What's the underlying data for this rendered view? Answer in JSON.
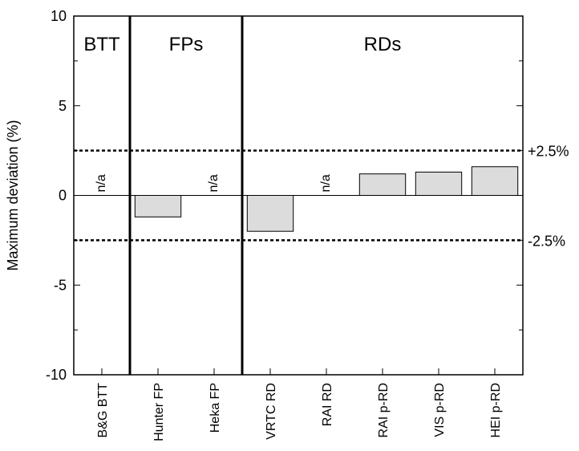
{
  "chart_data": {
    "type": "bar",
    "ylabel": "Maximum deviation (%)",
    "xlabel": "",
    "ylim": [
      -10,
      10
    ],
    "yticks": [
      -10,
      -5,
      0,
      5,
      10
    ],
    "categories": [
      "B&G BTT",
      "Hunter FP",
      "Heka FP",
      "VRTC RD",
      "RAI RD",
      "RAI p-RD",
      "VIS p-RD",
      "HEI p-RD"
    ],
    "values": [
      null,
      -1.2,
      null,
      -2.0,
      null,
      1.2,
      1.3,
      1.6
    ],
    "na_label": "n/a",
    "groups": [
      {
        "label": "BTT",
        "start": 0,
        "end": 0
      },
      {
        "label": "FPs",
        "start": 1,
        "end": 2
      },
      {
        "label": "RDs",
        "start": 3,
        "end": 7
      }
    ],
    "reference_lines": [
      {
        "value": 2.5,
        "label": "+2.5%"
      },
      {
        "value": -2.5,
        "label": "-2.5%"
      }
    ],
    "grid": false,
    "bar_fill": "#dcdcdc"
  }
}
